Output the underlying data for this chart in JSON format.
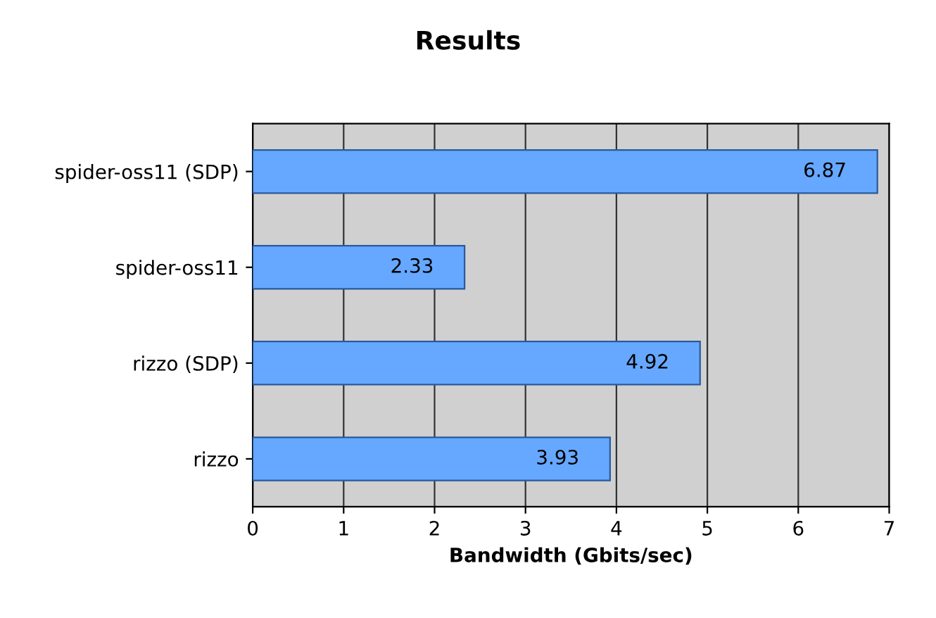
{
  "chart_data": {
    "type": "bar",
    "orientation": "horizontal",
    "title": "Results",
    "xlabel": "Bandwidth (Gbits/sec)",
    "categories": [
      "spider-oss11 (SDP)",
      "spider-oss11",
      "rizzo (SDP)",
      "rizzo"
    ],
    "values": [
      6.87,
      2.33,
      4.92,
      3.93
    ],
    "color": "#66a8ff",
    "xlim": [
      0,
      7
    ],
    "xticks": [
      0,
      1,
      2,
      3,
      4,
      5,
      6,
      7
    ],
    "grid": "x",
    "data_labels": true
  }
}
